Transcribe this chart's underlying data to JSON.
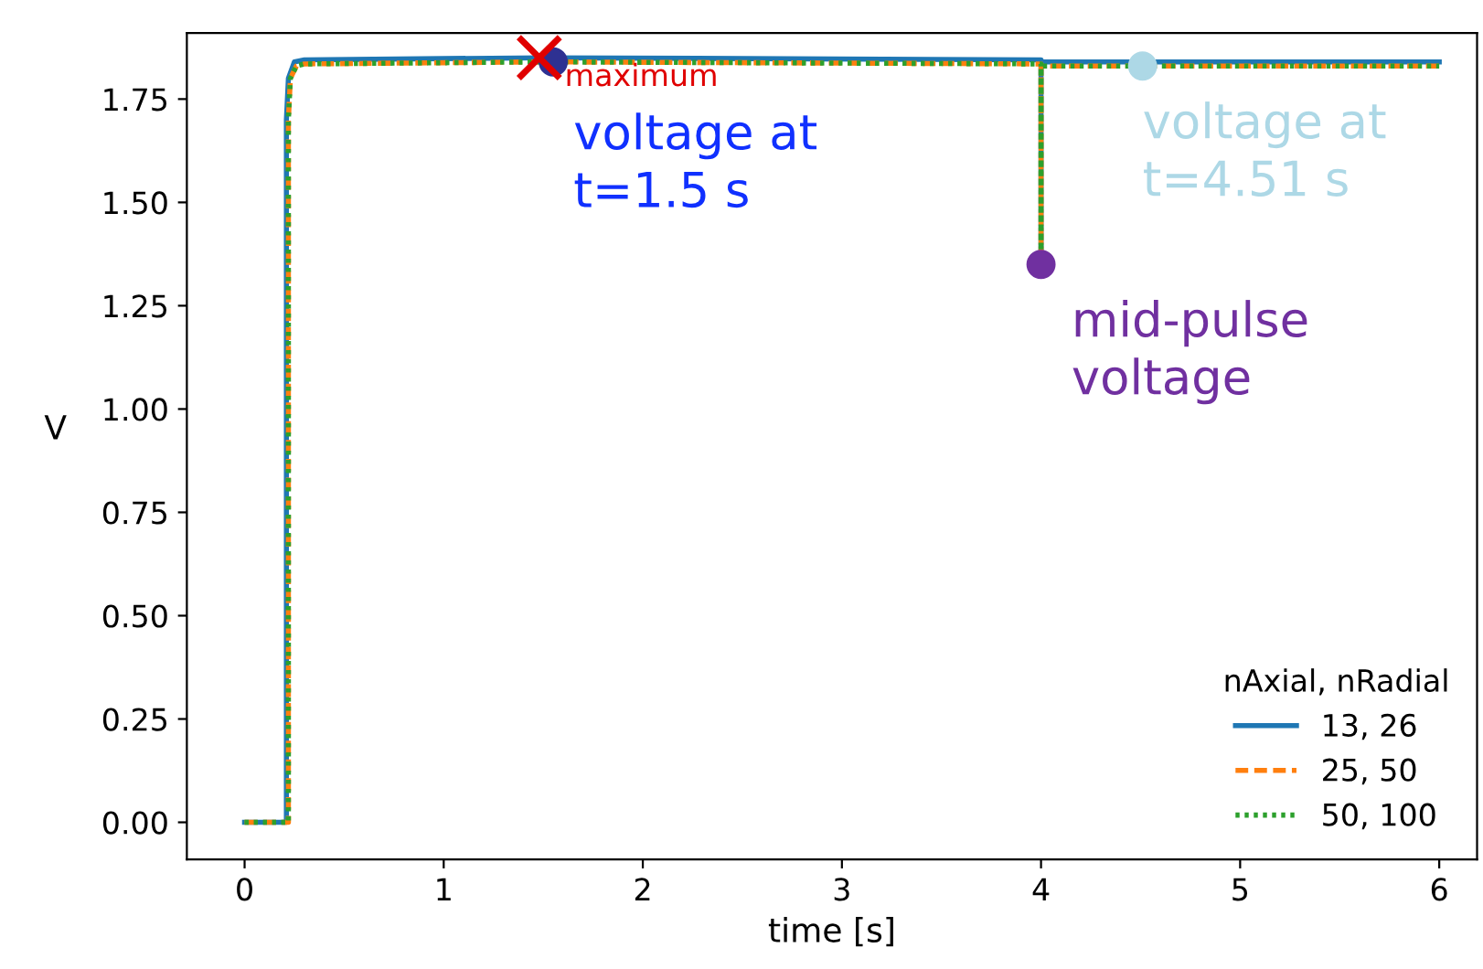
{
  "chart_data": {
    "type": "line",
    "xlabel": "time [s]",
    "ylabel": "V",
    "legend_title": "nAxial, nRadial",
    "legend": "bottom right",
    "grid": false,
    "xlim": [
      -0.29,
      6.19
    ],
    "ylim": [
      -0.09,
      1.91
    ],
    "xticks": [
      0,
      1,
      2,
      3,
      4,
      5,
      6
    ],
    "yticks": [
      {
        "value": 0,
        "label": "0.00"
      },
      {
        "value": 0.25,
        "label": "0.25"
      },
      {
        "value": 0.5,
        "label": "0.50"
      },
      {
        "value": 0.75,
        "label": "0.75"
      },
      {
        "value": 1.0,
        "label": "1.00"
      },
      {
        "value": 1.25,
        "label": "1.25"
      },
      {
        "value": 1.5,
        "label": "1.50"
      },
      {
        "value": 1.75,
        "label": "1.75"
      }
    ],
    "series": [
      {
        "name": "13, 26",
        "color": "#1f77b4",
        "line_style": "solid",
        "marker": "none",
        "x": [
          0,
          0.21,
          0.21,
          0.22,
          0.25,
          0.3,
          1.5,
          4.0,
          4.0,
          4.0,
          6
        ],
        "values": [
          0,
          0,
          1.7,
          1.8,
          1.84,
          1.845,
          1.85,
          1.845,
          1.35,
          1.84,
          1.84
        ]
      },
      {
        "name": "25, 50",
        "color": "#ff7f0e",
        "line_style": "dashed",
        "marker": "none",
        "x": [
          0,
          0.22,
          0.22,
          0.23,
          0.26,
          0.3,
          1.5,
          4.0,
          4.0,
          4.0,
          6
        ],
        "values": [
          0,
          0,
          1.7,
          1.8,
          1.83,
          1.835,
          1.84,
          1.835,
          1.35,
          1.83,
          1.83
        ]
      },
      {
        "name": "50, 100",
        "color": "#2ca02c",
        "line_style": "dotted",
        "marker": "none",
        "x": [
          0,
          0.22,
          0.22,
          0.23,
          0.26,
          0.3,
          1.5,
          4.0,
          4.0,
          4.0,
          6
        ],
        "values": [
          0,
          0,
          1.7,
          1.8,
          1.83,
          1.835,
          1.84,
          1.835,
          1.35,
          1.83,
          1.83
        ]
      },
      {
        "type": "scatter",
        "color": "#2e3192",
        "marker": "circle",
        "x": [
          1.55
        ],
        "values": [
          1.84
        ]
      },
      {
        "type": "scatter",
        "color": "#add8e6",
        "marker": "circle",
        "x": [
          4.51
        ],
        "values": [
          1.83
        ]
      },
      {
        "type": "scatter",
        "color": "#7030a0",
        "marker": "circle",
        "x": [
          4.0
        ],
        "values": [
          1.35
        ]
      },
      {
        "type": "scatter",
        "color": "#e00000",
        "marker": "cross",
        "x": [
          1.48
        ],
        "values": [
          1.85
        ]
      }
    ],
    "annotations": [
      {
        "text": "maximum",
        "x": 1.48,
        "y": 1.85
      },
      {
        "text": "voltage at\nt=1.5 s",
        "x": 1.55,
        "y": 1.84
      },
      {
        "text": "voltage at\nt=4.51 s",
        "x": 4.51,
        "y": 1.83
      },
      {
        "text": "mid-pulse\nvoltage",
        "x": 4.0,
        "y": 1.35
      }
    ]
  }
}
